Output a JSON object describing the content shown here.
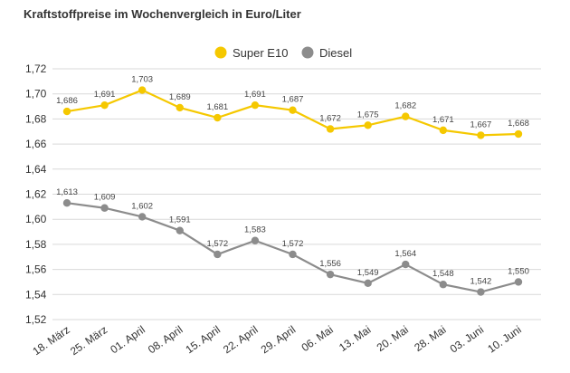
{
  "chart_data": {
    "type": "line",
    "title": "Kraftstoffpreise im Wochenvergleich in Euro/Liter",
    "categories": [
      "18. März",
      "25. März",
      "01. April",
      "08. April",
      "15. April",
      "22. April",
      "29. April",
      "06. Mai",
      "13. Mai",
      "20. Mai",
      "28. Mai",
      "03. Juni",
      "10. Juni"
    ],
    "series": [
      {
        "name": "Super E10",
        "color": "#f5c800",
        "values": [
          1.686,
          1.691,
          1.703,
          1.689,
          1.681,
          1.691,
          1.687,
          1.672,
          1.675,
          1.682,
          1.671,
          1.667,
          1.668
        ],
        "labels": [
          "1,686",
          "1,691",
          "1,703",
          "1,689",
          "1,681",
          "1,691",
          "1,687",
          "1,672",
          "1,675",
          "1,682",
          "1,671",
          "1,667",
          "1,668"
        ]
      },
      {
        "name": "Diesel",
        "color": "#8c8c8c",
        "values": [
          1.613,
          1.609,
          1.602,
          1.591,
          1.572,
          1.583,
          1.572,
          1.556,
          1.549,
          1.564,
          1.548,
          1.542,
          1.55
        ],
        "labels": [
          "1,613",
          "1,609",
          "1,602",
          "1,591",
          "1,572",
          "1,583",
          "1,572",
          "1,556",
          "1,549",
          "1,564",
          "1,548",
          "1,542",
          "1,550"
        ]
      }
    ],
    "ylim": [
      1.52,
      1.72
    ],
    "yticks": [
      1.52,
      1.54,
      1.56,
      1.58,
      1.6,
      1.62,
      1.64,
      1.66,
      1.68,
      1.7,
      1.72
    ],
    "ytick_labels": [
      "1,52",
      "1,54",
      "1,56",
      "1,58",
      "1,60",
      "1,62",
      "1,64",
      "1,66",
      "1,68",
      "1,70",
      "1,72"
    ],
    "grid": true,
    "legend": "top"
  }
}
